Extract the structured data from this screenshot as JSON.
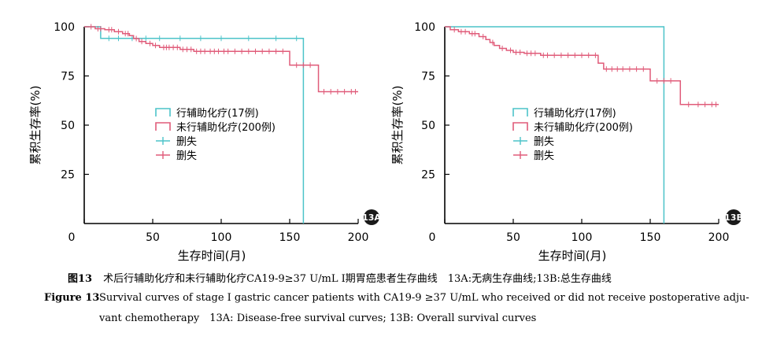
{
  "figure_caption_cn": {
    "number": "图13",
    "text": "术后行辅助化疗和未行辅助化疗CA19-9≥37 U/mL Ⅰ期胃癌患者生存曲线　13A:无病生存曲线;13B:总生存曲线"
  },
  "figure_caption_en": {
    "number": "Figure 13",
    "line1": "Survival curves of stage Ⅰ gastric cancer patients with CA19-9 ≥37 U/mL who received or did not receive postoperative adju-",
    "line2": "vant chemotherapy　13A: Disease-free survival curves; 13B: Overall survival curves"
  },
  "colors": {
    "treated": "#4cc3c9",
    "untreated": "#e05c7a",
    "axis": "#000000"
  },
  "chart_data": [
    {
      "panel": "13A",
      "type": "line",
      "step": true,
      "title": "",
      "xlabel": "生存时间(月)",
      "ylabel": "累积生存率(%)",
      "xlim": [
        0,
        200
      ],
      "ylim": [
        0,
        100
      ],
      "xticks": [
        0,
        50,
        100,
        150,
        200
      ],
      "yticks": [
        25,
        50,
        75,
        100
      ],
      "legend": [
        "行辅助化疗(17例)",
        "未行辅助化疗(200例)",
        "删失",
        "删失"
      ],
      "series": [
        {
          "name": "行辅助化疗(17例)",
          "color": "#4cc3c9",
          "x": [
            0,
            12,
            160,
            160
          ],
          "y": [
            100,
            94.1,
            94.1,
            0
          ],
          "censor_x": [
            18,
            25,
            35,
            45,
            55,
            70,
            85,
            100,
            120,
            140,
            155
          ]
        },
        {
          "name": "未行辅助化疗(200例)",
          "color": "#e05c7a",
          "x": [
            0,
            8,
            15,
            22,
            28,
            33,
            36,
            40,
            45,
            50,
            55,
            70,
            80,
            148,
            150,
            170,
            171,
            200
          ],
          "y": [
            100,
            99,
            98.5,
            97.5,
            96.5,
            95.5,
            94,
            92.5,
            91.5,
            90.5,
            89.5,
            88.5,
            87.5,
            87.5,
            80.5,
            80.5,
            67,
            67
          ],
          "censor_x": [
            5,
            10,
            12,
            18,
            20,
            25,
            30,
            32,
            38,
            42,
            48,
            52,
            58,
            60,
            62,
            65,
            68,
            72,
            75,
            78,
            82,
            85,
            88,
            92,
            95,
            98,
            102,
            105,
            110,
            115,
            120,
            125,
            130,
            135,
            140,
            145,
            155,
            160,
            165,
            175,
            180,
            185,
            190,
            195,
            198
          ]
        }
      ]
    },
    {
      "panel": "13B",
      "type": "line",
      "step": true,
      "title": "",
      "xlabel": "生存时间(月)",
      "ylabel": "累积生存率(%)",
      "xlim": [
        0,
        200
      ],
      "ylim": [
        0,
        100
      ],
      "xticks": [
        0,
        50,
        100,
        150,
        200
      ],
      "yticks": [
        25,
        50,
        75,
        100
      ],
      "legend": [
        "行辅助化疗(17例)",
        "未行辅助化疗(200例)",
        "删失",
        "删失"
      ],
      "series": [
        {
          "name": "行辅助化疗(17例)",
          "color": "#4cc3c9",
          "x": [
            0,
            160,
            160
          ],
          "y": [
            100,
            100,
            0
          ],
          "censor_x": []
        },
        {
          "name": "未行辅助化疗(200例)",
          "color": "#e05c7a",
          "x": [
            0,
            4,
            10,
            18,
            25,
            30,
            33,
            36,
            40,
            45,
            50,
            58,
            70,
            108,
            112,
            116,
            148,
            150,
            171,
            172,
            200
          ],
          "y": [
            100,
            98.5,
            97.5,
            96.5,
            95,
            93.5,
            92,
            90.5,
            89,
            88,
            87,
            86.5,
            85.5,
            85.5,
            81.5,
            78.5,
            78.5,
            72.5,
            72.5,
            60.5,
            60.5
          ],
          "censor_x": [
            7,
            12,
            15,
            20,
            22,
            28,
            35,
            42,
            48,
            52,
            55,
            60,
            63,
            66,
            72,
            75,
            80,
            85,
            90,
            95,
            100,
            105,
            110,
            118,
            122,
            126,
            130,
            135,
            140,
            145,
            155,
            160,
            165,
            178,
            185,
            190,
            195,
            198
          ]
        }
      ]
    }
  ]
}
